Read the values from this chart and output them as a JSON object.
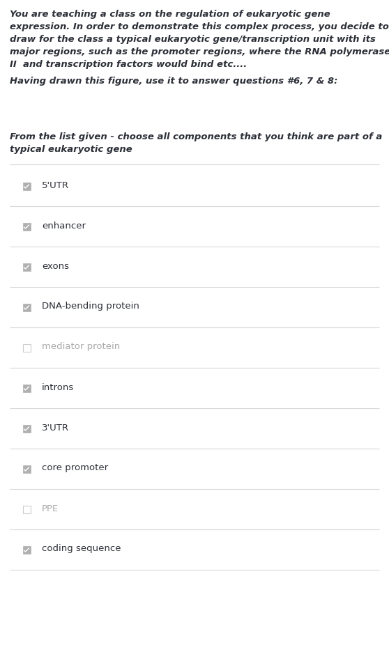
{
  "background_color": "#ffffff",
  "intro_lines": [
    "You are teaching a class on the regulation of eukaryotic gene",
    "expression. In order to demonstrate this complex process, you decide to",
    "draw for the class a typical eukaryotic gene/transcription unit with its",
    "major regions, such as the promoter regions, where the RNA polymerase",
    "II  and transcription factors would bind etc...."
  ],
  "subheading": "Having drawn this figure, use it to answer questions #6, 7 & 8:",
  "question_lines": [
    "From the list given - choose all components that you think are part of a",
    "typical eukaryotic gene"
  ],
  "options": [
    {
      "label": "5'UTR",
      "checked": true
    },
    {
      "label": "enhancer",
      "checked": true
    },
    {
      "label": "exons",
      "checked": true
    },
    {
      "label": "DNA-bending protein",
      "checked": true
    },
    {
      "label": "mediator protein",
      "checked": false
    },
    {
      "label": "introns",
      "checked": true
    },
    {
      "label": "3'UTR",
      "checked": true
    },
    {
      "label": "core promoter",
      "checked": true
    },
    {
      "label": "PPE",
      "checked": false
    },
    {
      "label": "coding sequence",
      "checked": true
    }
  ],
  "intro_fontsize": 9.5,
  "subheading_fontsize": 9.5,
  "question_fontsize": 9.5,
  "option_fontsize": 9.5,
  "text_color": "#2d3038",
  "checked_color": "#b0b0b0",
  "unchecked_border_color": "#cccccc",
  "line_color": "#d8d8d8",
  "checked_label_color": "#2d3038",
  "unchecked_label_color": "#aaaaaa"
}
